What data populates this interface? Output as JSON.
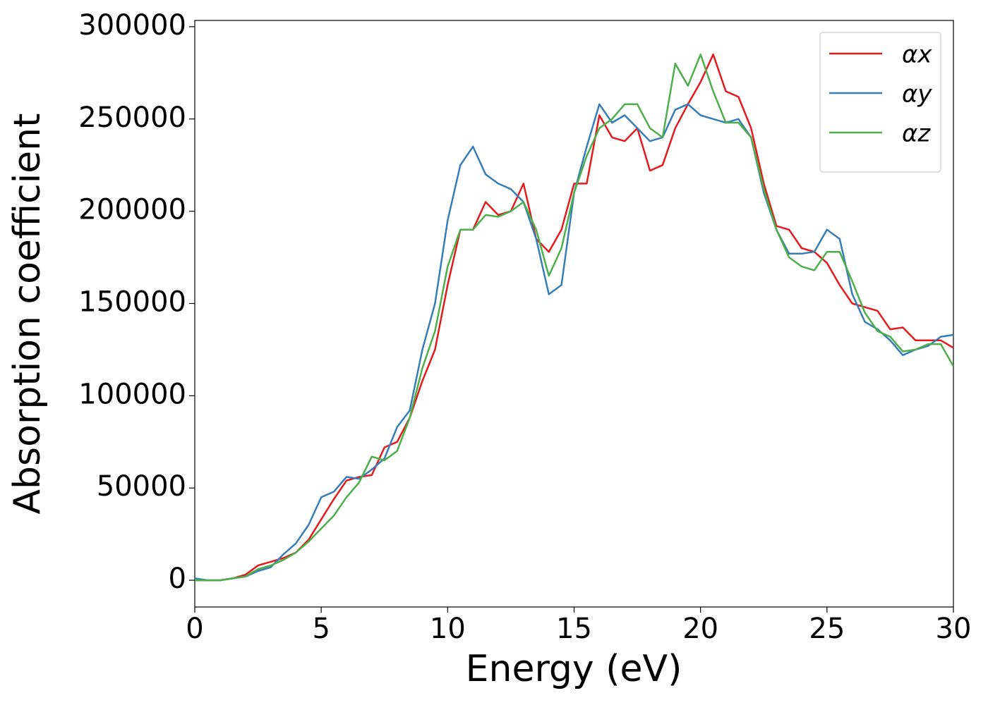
{
  "chart_data": {
    "type": "line",
    "xlabel": "Energy (eV)",
    "ylabel": "Absorption coefficient",
    "x": [
      0,
      0.5,
      1,
      1.5,
      2,
      2.5,
      3,
      3.5,
      4,
      4.5,
      5,
      5.5,
      6,
      6.5,
      7,
      7.5,
      8,
      8.5,
      9,
      9.5,
      10,
      10.5,
      11,
      11.5,
      12,
      12.5,
      13,
      13.5,
      14,
      14.5,
      15,
      15.5,
      16,
      16.5,
      17,
      17.5,
      18,
      18.5,
      19,
      19.5,
      20,
      20.5,
      21,
      21.5,
      22,
      22.5,
      23,
      23.5,
      24,
      24.5,
      25,
      25.5,
      26,
      26.5,
      27,
      27.5,
      28,
      28.5,
      29,
      29.5,
      30
    ],
    "series": [
      {
        "name": "αx",
        "color": "#e41a1c",
        "values": [
          0,
          0,
          0,
          1000,
          3000,
          8000,
          10000,
          12000,
          15000,
          22000,
          33000,
          44000,
          54000,
          56000,
          57000,
          72000,
          75000,
          88000,
          108000,
          125000,
          160000,
          190000,
          190000,
          205000,
          198000,
          200000,
          215000,
          185000,
          178000,
          190000,
          215000,
          215000,
          252000,
          240000,
          238000,
          245000,
          222000,
          225000,
          245000,
          258000,
          270000,
          285000,
          265000,
          262000,
          245000,
          215000,
          192000,
          190000,
          180000,
          178000,
          172000,
          160000,
          150000,
          148000,
          146000,
          136000,
          137000,
          130000,
          130000,
          130000,
          126000
        ]
      },
      {
        "name": "αy",
        "color": "#377eb8",
        "values": [
          1000,
          0,
          0,
          1000,
          2000,
          5000,
          7000,
          14000,
          20000,
          30000,
          45000,
          48000,
          56000,
          55000,
          60000,
          66000,
          83000,
          92000,
          125000,
          150000,
          195000,
          225000,
          235000,
          220000,
          215000,
          212000,
          205000,
          185000,
          155000,
          160000,
          210000,
          235000,
          258000,
          248000,
          252000,
          245000,
          238000,
          240000,
          255000,
          258000,
          252000,
          250000,
          248000,
          250000,
          240000,
          210000,
          190000,
          177000,
          177000,
          178000,
          190000,
          185000,
          155000,
          140000,
          136000,
          130000,
          122000,
          125000,
          127000,
          132000,
          133000
        ]
      },
      {
        "name": "αz",
        "color": "#4daf4a",
        "values": [
          0,
          0,
          0,
          1000,
          2000,
          6000,
          8000,
          11000,
          15000,
          21000,
          28000,
          35000,
          45000,
          53000,
          67000,
          65000,
          70000,
          88000,
          115000,
          135000,
          170000,
          190000,
          190000,
          198000,
          197000,
          200000,
          205000,
          190000,
          165000,
          180000,
          210000,
          230000,
          245000,
          250000,
          258000,
          258000,
          245000,
          240000,
          280000,
          268000,
          285000,
          265000,
          248000,
          248000,
          240000,
          212000,
          190000,
          175000,
          170000,
          168000,
          178000,
          178000,
          162000,
          145000,
          135000,
          132000,
          124000,
          125000,
          128000,
          128000,
          116000
        ]
      }
    ],
    "xlim": [
      0,
      30
    ],
    "xticks": [
      0,
      5,
      10,
      15,
      20,
      25,
      30
    ],
    "ylim": [
      -14500,
      303400
    ],
    "yticks": [
      0,
      50000,
      100000,
      150000,
      200000,
      250000,
      300000
    ],
    "legend": "upper right"
  }
}
